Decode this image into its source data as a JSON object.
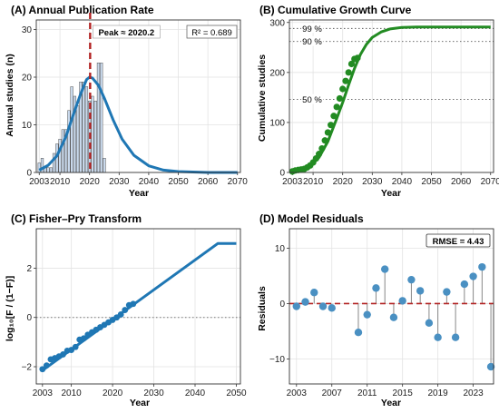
{
  "chart_data": [
    {
      "panel": "A",
      "type": "bar",
      "title": "(A) Annual Publication Rate",
      "xlabel": "Year",
      "ylabel": "Annual studies (n)",
      "xlim": [
        2002,
        2071
      ],
      "ylim": [
        0,
        32
      ],
      "xticks": [
        "2003",
        "2010",
        "2020",
        "2030",
        "2040",
        "2050",
        "2060",
        "2070"
      ],
      "yticks": [
        "0",
        "10",
        "20",
        "30"
      ],
      "bars": {
        "x": [
          2003,
          2004,
          2005,
          2006,
          2007,
          2008,
          2009,
          2010,
          2011,
          2012,
          2013,
          2014,
          2015,
          2016,
          2017,
          2018,
          2019,
          2020,
          2021,
          2022,
          2023,
          2024,
          2025
        ],
        "values": [
          2,
          3,
          1,
          1,
          1,
          4,
          6,
          7,
          9,
          9,
          13,
          18,
          16,
          14,
          19,
          19,
          18,
          15,
          16,
          15,
          23,
          23,
          3
        ]
      },
      "curve": {
        "x": [
          2003,
          2006,
          2009,
          2012,
          2015,
          2017,
          2019,
          2020,
          2021,
          2023,
          2025,
          2028,
          2031,
          2035,
          2040,
          2045,
          2050,
          2055,
          2060,
          2070
        ],
        "values": [
          0.5,
          1.5,
          3.5,
          7.5,
          13,
          16.5,
          19.5,
          20,
          19.8,
          18.3,
          15.6,
          11,
          7,
          3.6,
          1.4,
          0.5,
          0.2,
          0.1,
          0,
          0
        ]
      },
      "peak_line": 2020.2,
      "peak_label": "Peak ≈ 2020.2",
      "r2_label": "R² = 0.689",
      "colors": {
        "bar_fill": "#c9d9ec",
        "bar_edge": "#555555",
        "curve": "#1f77b4",
        "peak": "#b22222"
      }
    },
    {
      "panel": "B",
      "type": "line",
      "title": "(B) Cumulative Growth Curve",
      "xlabel": "Year",
      "ylabel": "Cumulative studies",
      "xlim": [
        2002,
        2071
      ],
      "ylim": [
        0,
        305
      ],
      "xticks": [
        "2003",
        "2010",
        "2020",
        "2030",
        "2040",
        "2050",
        "2060",
        "2070"
      ],
      "yticks": [
        "0",
        "100",
        "200",
        "300"
      ],
      "points": {
        "x": [
          2003,
          2004,
          2005,
          2006,
          2007,
          2008,
          2009,
          2010,
          2011,
          2012,
          2013,
          2014,
          2015,
          2016,
          2017,
          2018,
          2019,
          2020,
          2021,
          2022,
          2023,
          2024,
          2025
        ],
        "values": [
          2,
          4,
          5,
          6,
          7,
          10,
          14,
          20,
          28,
          37,
          48,
          64,
          80,
          95,
          113,
          131,
          148,
          167,
          183,
          200,
          217,
          227,
          229
        ]
      },
      "curve": {
        "x": [
          2003,
          2006,
          2009,
          2012,
          2015,
          2018,
          2020,
          2022,
          2024,
          2026,
          2028,
          2030,
          2033,
          2036,
          2040,
          2045,
          2050,
          2060,
          2070
        ],
        "values": [
          1,
          4,
          12,
          30,
          62,
          108,
          140,
          175,
          208,
          236,
          256,
          270,
          281,
          287,
          290,
          291,
          291,
          291,
          291
        ]
      },
      "reference_lines": [
        {
          "label": "99 %",
          "y": 288
        },
        {
          "label": "90 %",
          "y": 262
        },
        {
          "label": "50 %",
          "y": 146
        }
      ],
      "colors": {
        "line": "#228b22",
        "points": "#228b22",
        "reference": "#555555"
      }
    },
    {
      "panel": "C",
      "type": "line",
      "title": "(C) Fisher–Pry Transform",
      "xlabel": "Year",
      "ylabel": "log₁₀[F / (1−F)]",
      "xlim": [
        2001.5,
        2051
      ],
      "ylim": [
        -2.7,
        3.6
      ],
      "xticks": [
        "2003",
        "2010",
        "2020",
        "2030",
        "2040",
        "2050"
      ],
      "yticks": [
        "−2",
        "0",
        "2"
      ],
      "points": {
        "x": [
          2003,
          2004,
          2005,
          2006,
          2007,
          2008,
          2009,
          2010,
          2011,
          2012,
          2013,
          2014,
          2015,
          2016,
          2017,
          2018,
          2019,
          2020,
          2021,
          2022,
          2023,
          2024,
          2025
        ],
        "values": [
          -2.1,
          -1.95,
          -1.7,
          -1.65,
          -1.58,
          -1.5,
          -1.35,
          -1.32,
          -1.2,
          -0.9,
          -0.85,
          -0.7,
          -0.6,
          -0.5,
          -0.4,
          -0.3,
          -0.2,
          -0.1,
          0,
          0.12,
          0.3,
          0.5,
          0.55
        ]
      },
      "fit_line": {
        "x": [
          2003,
          2045.5,
          2050
        ],
        "values": [
          -2.15,
          3.0,
          3.0
        ]
      },
      "zero_line": 0,
      "colors": {
        "line": "#1f77b4",
        "points": "#1f77b4",
        "zero": "#777777"
      }
    },
    {
      "panel": "D",
      "type": "scatter",
      "title": "(D) Model Residuals",
      "xlabel": "Year",
      "ylabel": "Residuals",
      "xlim": [
        2002.2,
        2025.3
      ],
      "ylim": [
        -14.5,
        13.5
      ],
      "xticks": [
        "2003",
        "2007",
        "2011",
        "2015",
        "2019",
        "2023"
      ],
      "yticks": [
        "−10",
        "0",
        "10"
      ],
      "points": {
        "x": [
          2003,
          2004,
          2005,
          2006,
          2007,
          2008,
          2009,
          2010,
          2011,
          2012,
          2013,
          2014,
          2015,
          2016,
          2017,
          2018,
          2019,
          2020,
          2021,
          2022,
          2023,
          2024,
          2025
        ],
        "values": [
          -0.5,
          0.3,
          2.0,
          -0.5,
          -0.8,
          null,
          null,
          -5.2,
          -2.0,
          2.8,
          6.2,
          -2.5,
          0.5,
          4.3,
          2.3,
          -3.5,
          -6.1,
          2.1,
          -6.1,
          3.5,
          4.9,
          6.6,
          -11.4
        ]
      },
      "rmse_label": "RMSE = 4.43",
      "zero_line": 0,
      "colors": {
        "points": "#4a90c2",
        "stems": "#888888",
        "zero": "#b22222"
      }
    }
  ]
}
